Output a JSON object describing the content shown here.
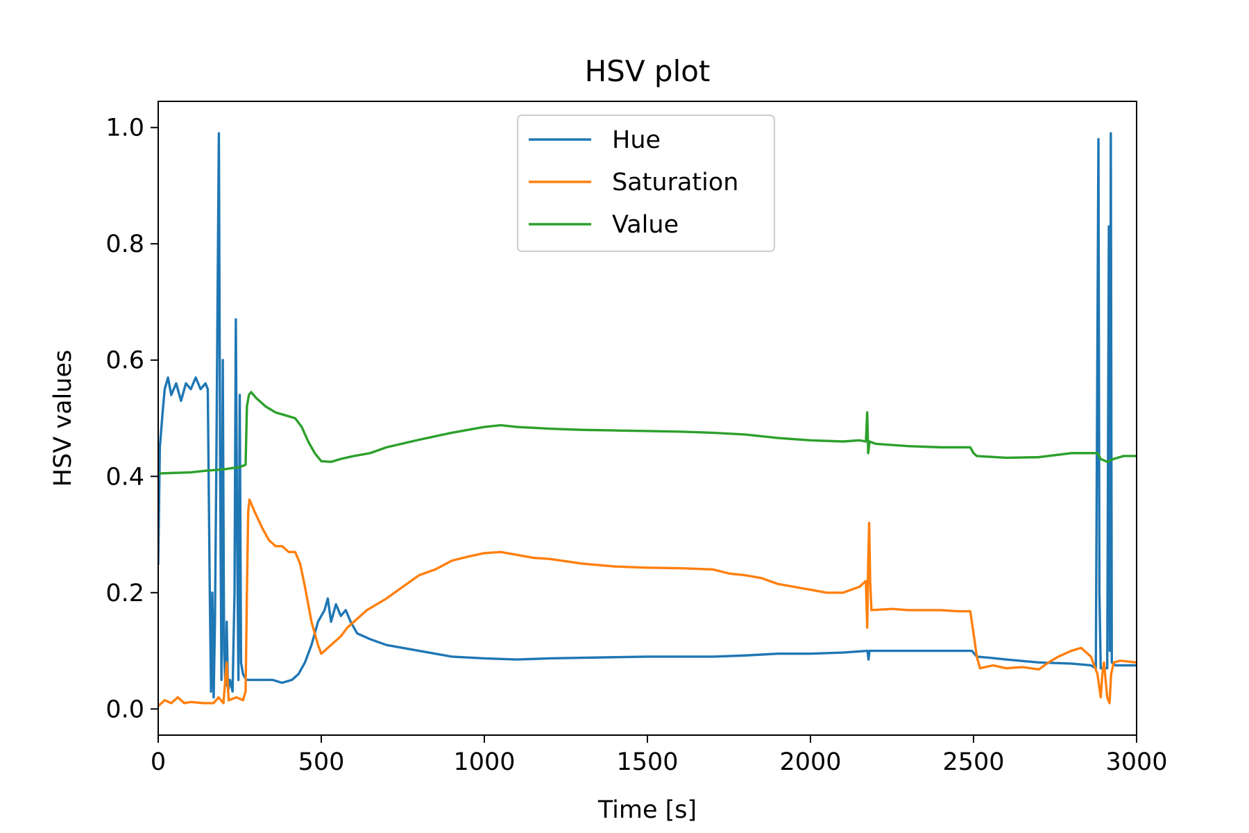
{
  "chart_data": {
    "type": "line",
    "title": "HSV plot",
    "xlabel": "Time [s]",
    "ylabel": "HSV values",
    "xlim": [
      0,
      3000
    ],
    "ylim": [
      -0.045,
      1.045
    ],
    "xticks": [
      0,
      500,
      1000,
      1500,
      2000,
      2500,
      3000
    ],
    "xtick_labels": [
      "0",
      "500",
      "1000",
      "1500",
      "2000",
      "2500",
      "3000"
    ],
    "yticks": [
      0.0,
      0.2,
      0.4,
      0.6,
      0.8,
      1.0
    ],
    "ytick_labels": [
      "0.0",
      "0.2",
      "0.4",
      "0.6",
      "0.8",
      "1.0"
    ],
    "grid": false,
    "legend_position": "upper center",
    "series": [
      {
        "name": "Hue",
        "color": "#1f77b4",
        "points": [
          [
            0,
            0.25
          ],
          [
            5,
            0.45
          ],
          [
            15,
            0.52
          ],
          [
            20,
            0.55
          ],
          [
            30,
            0.57
          ],
          [
            40,
            0.54
          ],
          [
            55,
            0.56
          ],
          [
            70,
            0.53
          ],
          [
            85,
            0.56
          ],
          [
            100,
            0.55
          ],
          [
            115,
            0.57
          ],
          [
            130,
            0.55
          ],
          [
            145,
            0.56
          ],
          [
            152,
            0.55
          ],
          [
            158,
            0.21
          ],
          [
            162,
            0.03
          ],
          [
            166,
            0.2
          ],
          [
            170,
            0.02
          ],
          [
            174,
            0.15
          ],
          [
            178,
            0.4
          ],
          [
            182,
            0.7
          ],
          [
            186,
            0.99
          ],
          [
            190,
            0.4
          ],
          [
            194,
            0.05
          ],
          [
            198,
            0.6
          ],
          [
            202,
            0.1
          ],
          [
            206,
            0.04
          ],
          [
            210,
            0.15
          ],
          [
            214,
            0.03
          ],
          [
            220,
            0.05
          ],
          [
            228,
            0.03
          ],
          [
            234,
            0.2
          ],
          [
            238,
            0.67
          ],
          [
            242,
            0.3
          ],
          [
            246,
            0.05
          ],
          [
            250,
            0.54
          ],
          [
            254,
            0.08
          ],
          [
            260,
            0.06
          ],
          [
            270,
            0.05
          ],
          [
            290,
            0.05
          ],
          [
            320,
            0.05
          ],
          [
            350,
            0.05
          ],
          [
            380,
            0.045
          ],
          [
            410,
            0.05
          ],
          [
            430,
            0.06
          ],
          [
            450,
            0.08
          ],
          [
            470,
            0.11
          ],
          [
            490,
            0.15
          ],
          [
            510,
            0.17
          ],
          [
            520,
            0.19
          ],
          [
            530,
            0.15
          ],
          [
            545,
            0.18
          ],
          [
            560,
            0.16
          ],
          [
            575,
            0.17
          ],
          [
            590,
            0.15
          ],
          [
            610,
            0.13
          ],
          [
            650,
            0.12
          ],
          [
            700,
            0.11
          ],
          [
            800,
            0.1
          ],
          [
            900,
            0.09
          ],
          [
            1000,
            0.087
          ],
          [
            1100,
            0.085
          ],
          [
            1200,
            0.087
          ],
          [
            1300,
            0.088
          ],
          [
            1400,
            0.089
          ],
          [
            1500,
            0.09
          ],
          [
            1600,
            0.09
          ],
          [
            1700,
            0.09
          ],
          [
            1800,
            0.092
          ],
          [
            1900,
            0.095
          ],
          [
            2000,
            0.095
          ],
          [
            2100,
            0.097
          ],
          [
            2175,
            0.1
          ],
          [
            2178,
            0.085
          ],
          [
            2181,
            0.1
          ],
          [
            2250,
            0.1
          ],
          [
            2350,
            0.1
          ],
          [
            2450,
            0.1
          ],
          [
            2495,
            0.1
          ],
          [
            2510,
            0.09
          ],
          [
            2550,
            0.088
          ],
          [
            2600,
            0.085
          ],
          [
            2700,
            0.08
          ],
          [
            2800,
            0.078
          ],
          [
            2860,
            0.075
          ],
          [
            2875,
            0.07
          ],
          [
            2883,
            0.98
          ],
          [
            2886,
            0.2
          ],
          [
            2890,
            0.07
          ],
          [
            2900,
            0.07
          ],
          [
            2910,
            0.07
          ],
          [
            2915,
            0.83
          ],
          [
            2918,
            0.1
          ],
          [
            2921,
            0.99
          ],
          [
            2924,
            0.08
          ],
          [
            2935,
            0.075
          ],
          [
            2960,
            0.075
          ],
          [
            3000,
            0.075
          ]
        ]
      },
      {
        "name": "Saturation",
        "color": "#ff7f0e",
        "points": [
          [
            0,
            0.005
          ],
          [
            20,
            0.015
          ],
          [
            40,
            0.01
          ],
          [
            60,
            0.02
          ],
          [
            80,
            0.01
          ],
          [
            100,
            0.012
          ],
          [
            140,
            0.01
          ],
          [
            170,
            0.01
          ],
          [
            185,
            0.02
          ],
          [
            200,
            0.01
          ],
          [
            210,
            0.08
          ],
          [
            216,
            0.015
          ],
          [
            240,
            0.02
          ],
          [
            260,
            0.015
          ],
          [
            268,
            0.03
          ],
          [
            272,
            0.2
          ],
          [
            276,
            0.34
          ],
          [
            280,
            0.36
          ],
          [
            295,
            0.34
          ],
          [
            320,
            0.31
          ],
          [
            340,
            0.29
          ],
          [
            360,
            0.28
          ],
          [
            380,
            0.28
          ],
          [
            400,
            0.27
          ],
          [
            420,
            0.27
          ],
          [
            435,
            0.25
          ],
          [
            450,
            0.21
          ],
          [
            470,
            0.15
          ],
          [
            490,
            0.11
          ],
          [
            500,
            0.095
          ],
          [
            520,
            0.105
          ],
          [
            540,
            0.115
          ],
          [
            560,
            0.125
          ],
          [
            580,
            0.14
          ],
          [
            600,
            0.15
          ],
          [
            640,
            0.17
          ],
          [
            700,
            0.19
          ],
          [
            750,
            0.21
          ],
          [
            800,
            0.23
          ],
          [
            850,
            0.24
          ],
          [
            900,
            0.255
          ],
          [
            950,
            0.262
          ],
          [
            1000,
            0.268
          ],
          [
            1050,
            0.27
          ],
          [
            1100,
            0.265
          ],
          [
            1150,
            0.26
          ],
          [
            1200,
            0.258
          ],
          [
            1300,
            0.25
          ],
          [
            1400,
            0.245
          ],
          [
            1500,
            0.243
          ],
          [
            1600,
            0.242
          ],
          [
            1700,
            0.24
          ],
          [
            1750,
            0.233
          ],
          [
            1800,
            0.23
          ],
          [
            1850,
            0.225
          ],
          [
            1900,
            0.215
          ],
          [
            1950,
            0.21
          ],
          [
            2000,
            0.205
          ],
          [
            2050,
            0.2
          ],
          [
            2100,
            0.2
          ],
          [
            2150,
            0.21
          ],
          [
            2170,
            0.22
          ],
          [
            2174,
            0.14
          ],
          [
            2177,
            0.25
          ],
          [
            2180,
            0.32
          ],
          [
            2183,
            0.22
          ],
          [
            2187,
            0.17
          ],
          [
            2250,
            0.172
          ],
          [
            2300,
            0.17
          ],
          [
            2350,
            0.17
          ],
          [
            2400,
            0.17
          ],
          [
            2450,
            0.168
          ],
          [
            2490,
            0.168
          ],
          [
            2500,
            0.13
          ],
          [
            2510,
            0.09
          ],
          [
            2520,
            0.07
          ],
          [
            2560,
            0.075
          ],
          [
            2600,
            0.07
          ],
          [
            2650,
            0.072
          ],
          [
            2700,
            0.068
          ],
          [
            2730,
            0.08
          ],
          [
            2760,
            0.09
          ],
          [
            2800,
            0.1
          ],
          [
            2830,
            0.105
          ],
          [
            2860,
            0.09
          ],
          [
            2880,
            0.06
          ],
          [
            2890,
            0.02
          ],
          [
            2895,
            0.06
          ],
          [
            2900,
            0.08
          ],
          [
            2910,
            0.02
          ],
          [
            2917,
            0.01
          ],
          [
            2922,
            0.06
          ],
          [
            2930,
            0.08
          ],
          [
            2950,
            0.083
          ],
          [
            3000,
            0.08
          ]
        ]
      },
      {
        "name": "Value",
        "color": "#2ca02c",
        "points": [
          [
            0,
            0.405
          ],
          [
            50,
            0.406
          ],
          [
            100,
            0.407
          ],
          [
            150,
            0.41
          ],
          [
            200,
            0.412
          ],
          [
            250,
            0.416
          ],
          [
            268,
            0.42
          ],
          [
            272,
            0.52
          ],
          [
            278,
            0.54
          ],
          [
            285,
            0.545
          ],
          [
            300,
            0.535
          ],
          [
            330,
            0.52
          ],
          [
            360,
            0.51
          ],
          [
            390,
            0.505
          ],
          [
            420,
            0.5
          ],
          [
            440,
            0.485
          ],
          [
            460,
            0.46
          ],
          [
            480,
            0.44
          ],
          [
            500,
            0.426
          ],
          [
            530,
            0.425
          ],
          [
            560,
            0.43
          ],
          [
            600,
            0.435
          ],
          [
            650,
            0.44
          ],
          [
            700,
            0.45
          ],
          [
            800,
            0.463
          ],
          [
            900,
            0.475
          ],
          [
            1000,
            0.485
          ],
          [
            1050,
            0.488
          ],
          [
            1100,
            0.485
          ],
          [
            1200,
            0.482
          ],
          [
            1300,
            0.48
          ],
          [
            1400,
            0.479
          ],
          [
            1500,
            0.478
          ],
          [
            1600,
            0.477
          ],
          [
            1700,
            0.475
          ],
          [
            1800,
            0.472
          ],
          [
            1900,
            0.466
          ],
          [
            2000,
            0.462
          ],
          [
            2100,
            0.46
          ],
          [
            2150,
            0.462
          ],
          [
            2170,
            0.46
          ],
          [
            2174,
            0.51
          ],
          [
            2177,
            0.44
          ],
          [
            2181,
            0.46
          ],
          [
            2200,
            0.456
          ],
          [
            2300,
            0.452
          ],
          [
            2400,
            0.45
          ],
          [
            2490,
            0.45
          ],
          [
            2500,
            0.44
          ],
          [
            2510,
            0.435
          ],
          [
            2600,
            0.432
          ],
          [
            2700,
            0.433
          ],
          [
            2800,
            0.44
          ],
          [
            2880,
            0.44
          ],
          [
            2890,
            0.43
          ],
          [
            2910,
            0.425
          ],
          [
            2930,
            0.43
          ],
          [
            2960,
            0.435
          ],
          [
            3000,
            0.435
          ]
        ]
      }
    ]
  }
}
